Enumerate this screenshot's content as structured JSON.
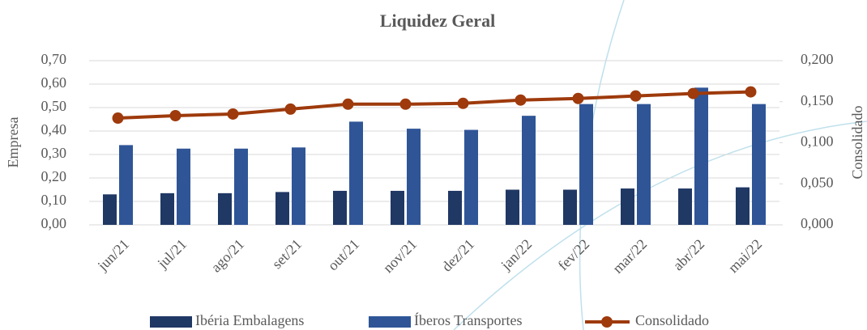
{
  "chart_data": {
    "type": "bar_line",
    "title": "Liquidez Geral",
    "y_label": "Empresa",
    "y2_label": "Consolidado",
    "categories": [
      "jun/21",
      "jul/21",
      "ago/21",
      "set/21",
      "out/21",
      "nov/21",
      "dez/21",
      "jan/22",
      "fev/22",
      "mar/22",
      "abr/22",
      "mai/22"
    ],
    "series": [
      {
        "name": "Ibéria Embalagens",
        "type": "bar",
        "color": "#203864",
        "values": [
          0.13,
          0.135,
          0.135,
          0.14,
          0.145,
          0.145,
          0.145,
          0.15,
          0.15,
          0.155,
          0.155,
          0.16
        ]
      },
      {
        "name": "Íberos Transportes",
        "type": "bar",
        "color": "#2f5597",
        "values": [
          0.34,
          0.325,
          0.325,
          0.33,
          0.44,
          0.41,
          0.405,
          0.465,
          0.515,
          0.515,
          0.585,
          0.515
        ]
      },
      {
        "name": "Consolidado",
        "type": "line",
        "axis": "y2",
        "color": "#9e3a0c",
        "values": [
          0.13,
          0.133,
          0.135,
          0.141,
          0.147,
          0.147,
          0.148,
          0.152,
          0.154,
          0.157,
          0.16,
          0.162
        ]
      }
    ],
    "ylim": [
      0,
      0.7
    ],
    "yticks": [
      {
        "value": 0,
        "label": "0,00"
      },
      {
        "value": 0.1,
        "label": "0,10"
      },
      {
        "value": 0.2,
        "label": "0,20"
      },
      {
        "value": 0.3,
        "label": "0,30"
      },
      {
        "value": 0.4,
        "label": "0,40"
      },
      {
        "value": 0.5,
        "label": "0,50"
      },
      {
        "value": 0.6,
        "label": "0,60"
      },
      {
        "value": 0.7,
        "label": "0,70"
      }
    ],
    "y2lim": [
      0,
      0.2
    ],
    "y2ticks": [
      {
        "value": 0,
        "label": "0,000"
      },
      {
        "value": 0.05,
        "label": "0,050"
      },
      {
        "value": 0.1,
        "label": "0,100"
      },
      {
        "value": 0.15,
        "label": "0,150"
      },
      {
        "value": 0.2,
        "label": "0,200"
      }
    ],
    "grid": true,
    "legend": "bottom"
  }
}
